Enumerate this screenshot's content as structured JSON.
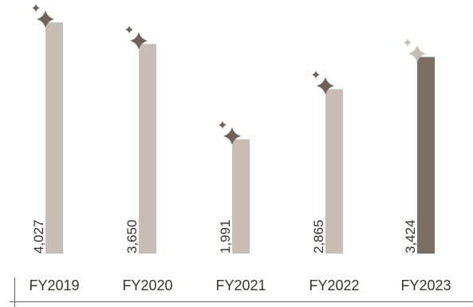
{
  "chart_data": {
    "type": "bar",
    "categories": [
      "FY2019",
      "FY2020",
      "FY2021",
      "FY2022",
      "FY2023"
    ],
    "values": [
      4027,
      3650,
      1991,
      2865,
      3424
    ],
    "value_labels": [
      "4,027",
      "3,650",
      "1,991",
      "2,865",
      "3,424"
    ],
    "highlight_index": 4,
    "ylim": [
      0,
      4027
    ],
    "grid": false,
    "colors": {
      "bar": "#c9beb5",
      "bar_highlight": "#7c6e65",
      "sparkle": "#6f625a",
      "sparkle_highlight": "#c9beb5",
      "axis": "#6f625a",
      "text": "#3a3330"
    }
  }
}
